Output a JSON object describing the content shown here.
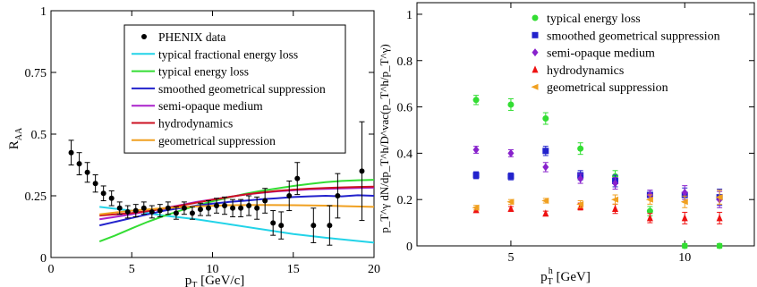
{
  "chart_data": [
    {
      "type": "line",
      "xlabel": "p",
      "xlabel_sub": "T",
      "xlabel_unit": " [GeV/c]",
      "ylabel": "R",
      "ylabel_sub": "AA",
      "xlim": [
        0,
        20
      ],
      "ylim": [
        0,
        1
      ],
      "xticks": [
        {
          "v": 0,
          "label": "0"
        },
        {
          "v": 5,
          "label": "5"
        },
        {
          "v": 10,
          "label": "10"
        },
        {
          "v": 15,
          "label": "15"
        },
        {
          "v": 20,
          "label": "20"
        }
      ],
      "yticks": [
        {
          "v": 0,
          "label": "0"
        },
        {
          "v": 0.25,
          "label": "0.25"
        },
        {
          "v": 0.5,
          "label": "0.5"
        },
        {
          "v": 0.75,
          "label": "0.75"
        },
        {
          "v": 1,
          "label": "1"
        }
      ],
      "grid": false,
      "legend_position": "top-right",
      "data_series": {
        "name": "PHENIX data",
        "color": "#000000",
        "points": [
          {
            "x": 1.25,
            "y": 0.425,
            "err": 0.05
          },
          {
            "x": 1.75,
            "y": 0.38,
            "err": 0.045
          },
          {
            "x": 2.25,
            "y": 0.345,
            "err": 0.04
          },
          {
            "x": 2.75,
            "y": 0.3,
            "err": 0.035
          },
          {
            "x": 3.25,
            "y": 0.26,
            "err": 0.03
          },
          {
            "x": 3.75,
            "y": 0.24,
            "err": 0.03
          },
          {
            "x": 4.25,
            "y": 0.2,
            "err": 0.025
          },
          {
            "x": 4.75,
            "y": 0.185,
            "err": 0.025
          },
          {
            "x": 5.25,
            "y": 0.19,
            "err": 0.025
          },
          {
            "x": 5.75,
            "y": 0.2,
            "err": 0.025
          },
          {
            "x": 6.25,
            "y": 0.185,
            "err": 0.025
          },
          {
            "x": 6.75,
            "y": 0.19,
            "err": 0.025
          },
          {
            "x": 7.25,
            "y": 0.2,
            "err": 0.025
          },
          {
            "x": 7.75,
            "y": 0.18,
            "err": 0.025
          },
          {
            "x": 8.25,
            "y": 0.2,
            "err": 0.025
          },
          {
            "x": 8.75,
            "y": 0.18,
            "err": 0.025
          },
          {
            "x": 9.25,
            "y": 0.195,
            "err": 0.025
          },
          {
            "x": 9.75,
            "y": 0.2,
            "err": 0.03
          },
          {
            "x": 10.25,
            "y": 0.21,
            "err": 0.03
          },
          {
            "x": 10.75,
            "y": 0.21,
            "err": 0.035
          },
          {
            "x": 11.25,
            "y": 0.2,
            "err": 0.035
          },
          {
            "x": 11.75,
            "y": 0.2,
            "err": 0.035
          },
          {
            "x": 12.25,
            "y": 0.21,
            "err": 0.04
          },
          {
            "x": 12.75,
            "y": 0.2,
            "err": 0.045
          },
          {
            "x": 13.25,
            "y": 0.23,
            "err": 0.05
          },
          {
            "x": 13.75,
            "y": 0.14,
            "err": 0.05
          },
          {
            "x": 14.25,
            "y": 0.13,
            "err": 0.055
          },
          {
            "x": 14.75,
            "y": 0.25,
            "err": 0.06
          },
          {
            "x": 15.25,
            "y": 0.32,
            "err": 0.065
          },
          {
            "x": 16.25,
            "y": 0.13,
            "err": 0.07
          },
          {
            "x": 17.25,
            "y": 0.13,
            "err": 0.08
          },
          {
            "x": 17.75,
            "y": 0.25,
            "err": 0.09
          },
          {
            "x": 19.25,
            "y": 0.35,
            "err": 0.2
          }
        ]
      },
      "series": [
        {
          "name": "typical fractional energy loss",
          "color": "#22d3e8",
          "x": [
            3,
            5,
            7,
            9,
            11,
            13,
            15,
            17,
            20
          ],
          "y": [
            0.205,
            0.19,
            0.17,
            0.155,
            0.135,
            0.115,
            0.095,
            0.08,
            0.06
          ]
        },
        {
          "name": "typical energy loss",
          "color": "#33dd33",
          "x": [
            3,
            4,
            5,
            6,
            7,
            8,
            9,
            10,
            11,
            12,
            13,
            14,
            15,
            16,
            17,
            18,
            19,
            20
          ],
          "y": [
            0.065,
            0.09,
            0.118,
            0.145,
            0.168,
            0.19,
            0.21,
            0.228,
            0.243,
            0.258,
            0.27,
            0.28,
            0.29,
            0.298,
            0.305,
            0.31,
            0.313,
            0.315
          ]
        },
        {
          "name": "smoothed geometrical suppression",
          "color": "#2222cc",
          "x": [
            3,
            4,
            5,
            6,
            7,
            8,
            9,
            10,
            11,
            12,
            13,
            14,
            15,
            16,
            17,
            18,
            19,
            20
          ],
          "y": [
            0.13,
            0.145,
            0.16,
            0.175,
            0.19,
            0.2,
            0.21,
            0.218,
            0.225,
            0.23,
            0.236,
            0.24,
            0.245,
            0.248,
            0.25,
            0.248,
            0.252,
            0.25
          ]
        },
        {
          "name": "semi-opaque medium",
          "color": "#aa22cc",
          "x": [
            3,
            4,
            5,
            6,
            7,
            8,
            9,
            10,
            11,
            12,
            13,
            14,
            15,
            16,
            17,
            18,
            19,
            20
          ],
          "y": [
            0.155,
            0.165,
            0.175,
            0.188,
            0.2,
            0.212,
            0.225,
            0.235,
            0.245,
            0.255,
            0.262,
            0.268,
            0.272,
            0.276,
            0.278,
            0.28,
            0.282,
            0.283
          ]
        },
        {
          "name": "hydrodynamics",
          "color": "#cc1122",
          "x": [
            3,
            4,
            5,
            6,
            7,
            8,
            9,
            10,
            11,
            12,
            13,
            14,
            15,
            16,
            17,
            18,
            19,
            20
          ],
          "y": [
            0.17,
            0.175,
            0.18,
            0.188,
            0.198,
            0.21,
            0.222,
            0.234,
            0.245,
            0.255,
            0.263,
            0.27,
            0.275,
            0.279,
            0.282,
            0.284,
            0.286,
            0.287
          ]
        },
        {
          "name": "geometrical suppression",
          "color": "#f0a020",
          "x": [
            3,
            5,
            7,
            9,
            11,
            13,
            15,
            17,
            20
          ],
          "y": [
            0.175,
            0.19,
            0.2,
            0.207,
            0.212,
            0.213,
            0.212,
            0.21,
            0.205
          ]
        }
      ]
    },
    {
      "type": "scatter",
      "xlabel": "p",
      "xlabel_sub": "T",
      "xlabel_sup": "h",
      "xlabel_unit": " [GeV]",
      "ylabel_text": "p_T^γ dN/dp_T^h/D^vac(p_T^h/p_T^γ)",
      "xlim": [
        2.3,
        12
      ],
      "ylim": [
        0,
        1.05
      ],
      "xticks": [
        {
          "v": 5,
          "label": "5"
        },
        {
          "v": 10,
          "label": "10"
        }
      ],
      "yticks": [
        {
          "v": 0,
          "label": "0"
        },
        {
          "v": 0.2,
          "label": "0.2"
        },
        {
          "v": 0.4,
          "label": "0.4"
        },
        {
          "v": 0.6,
          "label": "0.6"
        },
        {
          "v": 0.8,
          "label": "0.8"
        },
        {
          "v": 1,
          "label": "1"
        }
      ],
      "grid": false,
      "legend_position": "top-right",
      "series": [
        {
          "name": "typical energy loss",
          "color": "#33dd33",
          "marker": "circle",
          "x": [
            4,
            5,
            6,
            7,
            8,
            9,
            10,
            11
          ],
          "y": [
            0.63,
            0.61,
            0.55,
            0.42,
            0.3,
            0.15,
            0.0,
            0.0
          ],
          "err": [
            0.02,
            0.025,
            0.025,
            0.025,
            0.025,
            0.02,
            0.01,
            0.01
          ]
        },
        {
          "name": "smoothed geometrical suppression",
          "color": "#2222cc",
          "marker": "square",
          "x": [
            4,
            5,
            6,
            7,
            8,
            9,
            10,
            11
          ],
          "y": [
            0.305,
            0.3,
            0.41,
            0.305,
            0.28,
            0.22,
            0.22,
            0.21
          ],
          "err": [
            0.015,
            0.015,
            0.02,
            0.02,
            0.025,
            0.02,
            0.03,
            0.035
          ]
        },
        {
          "name": "semi-opaque medium",
          "color": "#8822cc",
          "marker": "diamond",
          "x": [
            4,
            5,
            6,
            7,
            8,
            9,
            10,
            11
          ],
          "y": [
            0.415,
            0.4,
            0.34,
            0.29,
            0.27,
            0.22,
            0.23,
            0.2
          ],
          "err": [
            0.015,
            0.015,
            0.02,
            0.02,
            0.025,
            0.02,
            0.03,
            0.035
          ]
        },
        {
          "name": "hydrodynamics",
          "color": "#ee1111",
          "marker": "triangle",
          "x": [
            4,
            5,
            6,
            7,
            8,
            9,
            10,
            11
          ],
          "y": [
            0.155,
            0.16,
            0.14,
            0.17,
            0.16,
            0.12,
            0.12,
            0.12
          ],
          "err": [
            0.01,
            0.01,
            0.01,
            0.015,
            0.02,
            0.02,
            0.025,
            0.025
          ]
        },
        {
          "name": "geometrical suppression",
          "color": "#f0a020",
          "marker": "lefttriangle",
          "x": [
            4,
            5,
            6,
            7,
            8,
            9,
            10,
            11
          ],
          "y": [
            0.165,
            0.19,
            0.195,
            0.18,
            0.2,
            0.2,
            0.19,
            0.21
          ],
          "err": [
            0.01,
            0.01,
            0.01,
            0.015,
            0.02,
            0.02,
            0.025,
            0.03
          ]
        }
      ]
    }
  ]
}
